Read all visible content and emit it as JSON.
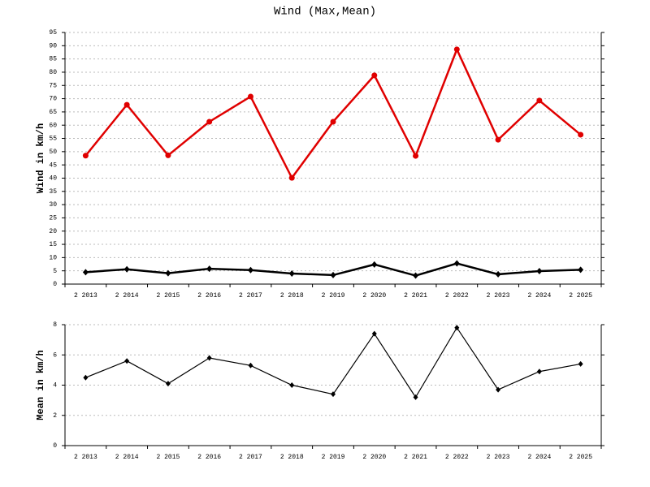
{
  "chart_data": [
    {
      "type": "line",
      "title": "Wind (Max,Mean)",
      "y_label": "Wind in km/h",
      "categories": [
        "2 2013",
        "2 2014",
        "2 2015",
        "2 2016",
        "2 2017",
        "2 2018",
        "2 2019",
        "2 2020",
        "2 2021",
        "2 2022",
        "2 2023",
        "2 2024",
        "2 2025"
      ],
      "series": [
        {
          "name": "Max",
          "color": "#e00000",
          "marker": "circle",
          "values": [
            48.5,
            67.7,
            48.6,
            61.3,
            70.8,
            40.1,
            61.3,
            78.8,
            48.4,
            88.6,
            54.5,
            69.3,
            56.4
          ]
        },
        {
          "name": "Mean",
          "color": "#000000",
          "marker": "diamond",
          "values": [
            4.5,
            5.6,
            4.1,
            5.8,
            5.3,
            4.0,
            3.4,
            7.4,
            3.2,
            7.8,
            3.7,
            4.9,
            5.4
          ]
        }
      ],
      "ylim": [
        0,
        95
      ],
      "yticks": [
        0,
        5,
        10,
        15,
        20,
        25,
        30,
        35,
        40,
        45,
        50,
        55,
        60,
        65,
        70,
        75,
        80,
        85,
        90,
        95
      ],
      "grid": true
    },
    {
      "type": "line",
      "y_label": "Mean in km/h",
      "categories": [
        "2 2013",
        "2 2014",
        "2 2015",
        "2 2016",
        "2 2017",
        "2 2018",
        "2 2019",
        "2 2020",
        "2 2021",
        "2 2022",
        "2 2023",
        "2 2024",
        "2 2025"
      ],
      "series": [
        {
          "name": "Mean",
          "color": "#000000",
          "marker": "diamond",
          "values": [
            4.5,
            5.6,
            4.1,
            5.8,
            5.3,
            4.0,
            3.4,
            7.4,
            3.2,
            7.8,
            3.7,
            4.9,
            5.4
          ]
        }
      ],
      "ylim": [
        0,
        8
      ],
      "yticks": [
        0,
        2,
        4,
        6,
        8
      ],
      "grid": true
    }
  ]
}
